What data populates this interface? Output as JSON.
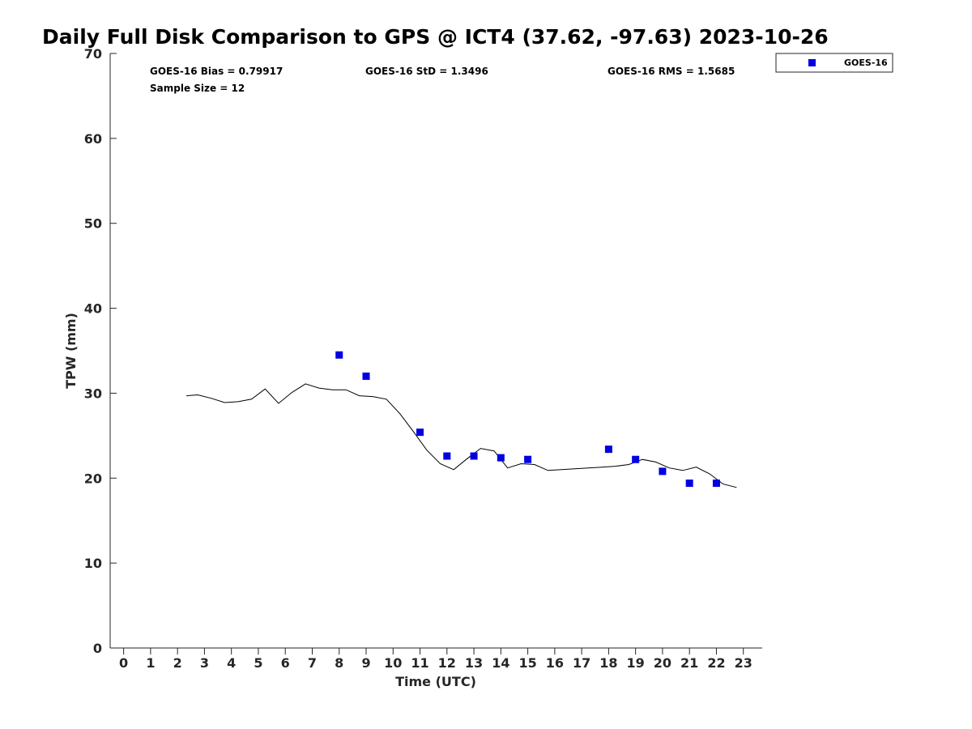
{
  "chart_data": {
    "type": "line",
    "title": "Daily Full Disk Comparison to GPS @ ICT4 (37.62, -97.63) 2023-10-26",
    "xlabel": "Time (UTC)",
    "ylabel": "TPW (mm)",
    "xlim": [
      -0.5,
      23.7
    ],
    "ylim": [
      0,
      70
    ],
    "x_ticks": [
      0,
      1,
      2,
      3,
      4,
      5,
      6,
      7,
      8,
      9,
      10,
      11,
      12,
      13,
      14,
      15,
      16,
      17,
      18,
      19,
      20,
      21,
      22,
      23
    ],
    "y_ticks": [
      0,
      10,
      20,
      30,
      40,
      50,
      60,
      70
    ],
    "grid": false,
    "legend_position": "top-right (outside)",
    "stats": {
      "bias": "GOES-16 Bias = 0.79917",
      "std": "GOES-16 StD = 1.3496",
      "rms": "GOES-16 RMS = 1.5685",
      "sample_size": "Sample Size = 12"
    },
    "series": [
      {
        "style": "line",
        "color": "#000000",
        "x": [
          2.33,
          2.75,
          3.25,
          3.75,
          4.25,
          4.75,
          5.25,
          5.75,
          6.25,
          6.75,
          7.25,
          7.75,
          8.25,
          8.75,
          9.25,
          9.75,
          10.25,
          10.75,
          11.25,
          11.75,
          12.25,
          12.75,
          13.25,
          13.75,
          14.25,
          14.75,
          15.25,
          15.75,
          16.25,
          16.75,
          17.25,
          17.75,
          18.25,
          18.75,
          19.25,
          19.75,
          20.25,
          20.75,
          21.25,
          21.75,
          22.25,
          22.75
        ],
        "y": [
          29.7,
          29.8,
          29.4,
          28.9,
          29.0,
          29.3,
          30.5,
          28.8,
          30.1,
          31.1,
          30.6,
          30.4,
          30.4,
          29.7,
          29.6,
          29.3,
          27.6,
          25.5,
          23.3,
          21.7,
          21.0,
          22.3,
          23.5,
          23.2,
          21.2,
          21.7,
          21.6,
          20.9,
          21.0,
          21.1,
          21.2,
          21.3,
          21.4,
          21.6,
          22.2,
          21.9,
          21.2,
          20.9,
          21.3,
          20.5,
          19.3,
          18.9
        ]
      },
      {
        "name": "GOES-16",
        "style": "markers",
        "color": "#0000e0",
        "marker": "square",
        "x": [
          8,
          9,
          11,
          12,
          13,
          14,
          15,
          18,
          19,
          20,
          21,
          22
        ],
        "y": [
          34.5,
          32.0,
          25.4,
          22.6,
          22.6,
          22.4,
          22.2,
          23.4,
          22.2,
          20.8,
          19.4,
          19.4
        ]
      }
    ]
  }
}
